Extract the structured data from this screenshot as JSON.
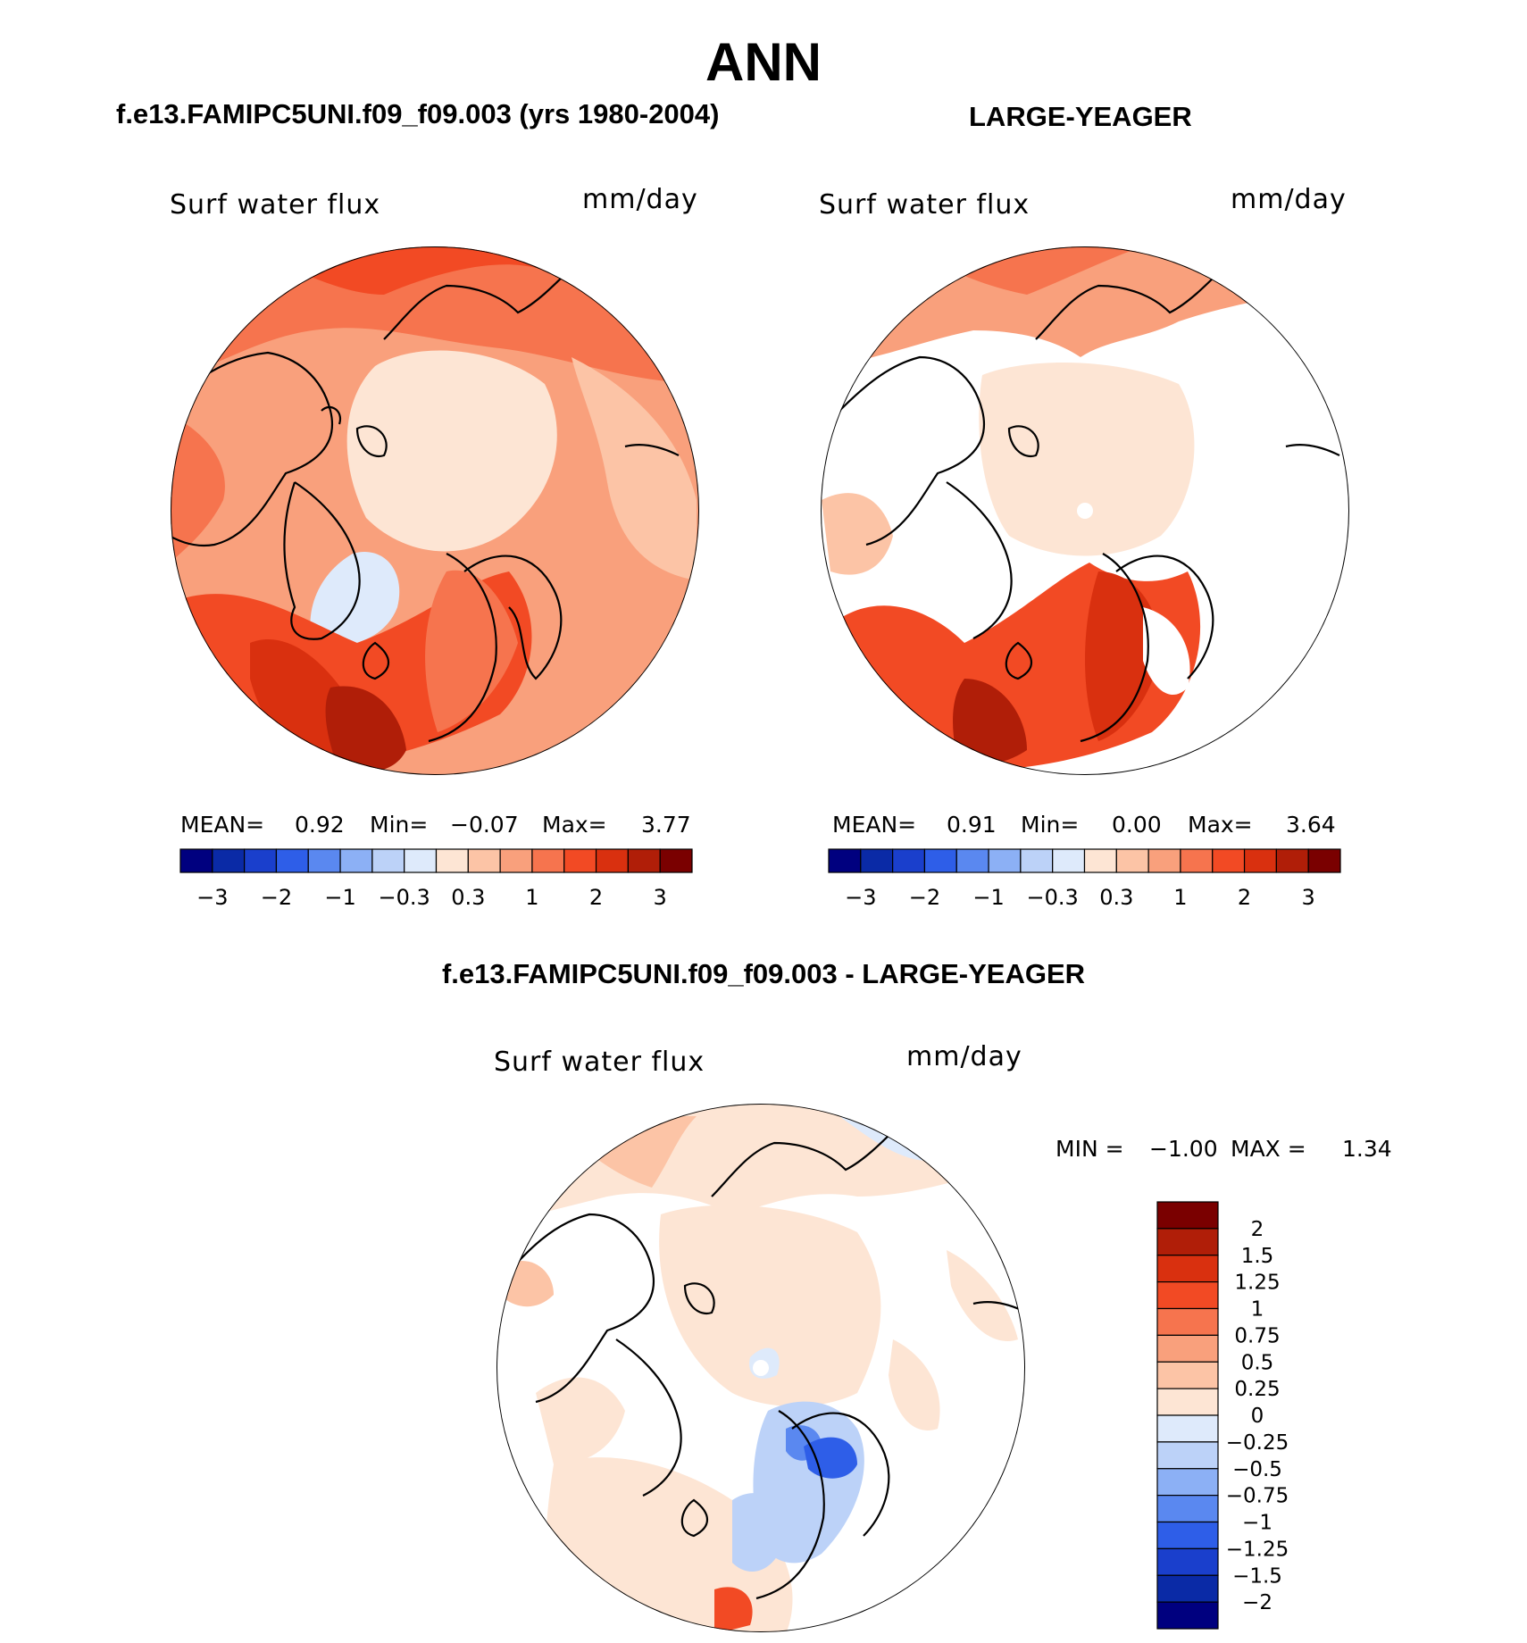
{
  "page": {
    "title": "ANN",
    "left_title": "f.e13.FAMIPC5UNI.f09_f09.003 (yrs 1980-2004)",
    "right_title": "LARGE-YEAGER",
    "diff_title": "f.e13.FAMIPC5UNI.f09_f09.003 - LARGE-YEAGER"
  },
  "panels": {
    "left": {
      "variable": "Surf water flux",
      "units": "mm/day",
      "mean_label": "MEAN=",
      "mean_value": "0.92",
      "min_label": "Min=",
      "min_value": "−0.07",
      "max_label": "Max=",
      "max_value": "3.77"
    },
    "right": {
      "variable": "Surf water flux",
      "units": "mm/day",
      "mean_label": "MEAN=",
      "mean_value": "0.91",
      "min_label": "Min=",
      "min_value": "0.00",
      "max_label": "Max=",
      "max_value": "3.64"
    },
    "diff": {
      "variable": "Surf water flux",
      "units": "mm/day",
      "min_label": "MIN =",
      "min_value": "−1.00",
      "max_label": "MAX =",
      "max_value": "1.34"
    }
  },
  "chart_data": [
    {
      "type": "heatmap",
      "projection": "north polar stereographic",
      "title": "f.e13.FAMIPC5UNI.f09_f09.003 (yrs 1980-2004)",
      "variable": "Surf water flux",
      "units": "mm/day",
      "mean": 0.92,
      "min": -0.07,
      "max": 3.77,
      "colorbar": {
        "orientation": "horizontal",
        "levels": [
          -3,
          -2.5,
          -2,
          -1.5,
          -1,
          -0.6,
          -0.3,
          0,
          0.3,
          0.6,
          1,
          1.5,
          2,
          2.5,
          3
        ],
        "tick_labels": [
          "−3",
          "−2",
          "−1",
          "−0.3",
          "0.3",
          "1",
          "2",
          "3"
        ],
        "colors": [
          "#00007f",
          "#0a2aa6",
          "#1a3fcc",
          "#2e5ee8",
          "#5a88f0",
          "#8cb0f5",
          "#bcd2f8",
          "#deeafb",
          "#fde5d4",
          "#fcc4a6",
          "#f9a07c",
          "#f6744e",
          "#f24a24",
          "#d9300f",
          "#b01e08",
          "#7a0000"
        ]
      }
    },
    {
      "type": "heatmap",
      "projection": "north polar stereographic",
      "title": "LARGE-YEAGER",
      "variable": "Surf water flux",
      "units": "mm/day",
      "mean": 0.91,
      "min": 0.0,
      "max": 3.64,
      "colorbar": {
        "orientation": "horizontal",
        "levels": [
          -3,
          -2.5,
          -2,
          -1.5,
          -1,
          -0.6,
          -0.3,
          0,
          0.3,
          0.6,
          1,
          1.5,
          2,
          2.5,
          3
        ],
        "tick_labels": [
          "−3",
          "−2",
          "−1",
          "−0.3",
          "0.3",
          "1",
          "2",
          "3"
        ],
        "colors": [
          "#00007f",
          "#0a2aa6",
          "#1a3fcc",
          "#2e5ee8",
          "#5a88f0",
          "#8cb0f5",
          "#bcd2f8",
          "#deeafb",
          "#fde5d4",
          "#fcc4a6",
          "#f9a07c",
          "#f6744e",
          "#f24a24",
          "#d9300f",
          "#b01e08",
          "#7a0000"
        ]
      }
    },
    {
      "type": "heatmap",
      "projection": "north polar stereographic",
      "title": "f.e13.FAMIPC5UNI.f09_f09.003 - LARGE-YEAGER",
      "variable": "Surf water flux",
      "units": "mm/day",
      "min": -1.0,
      "max": 1.34,
      "colorbar": {
        "orientation": "vertical",
        "tick_labels": [
          "2",
          "1.5",
          "1.25",
          "1",
          "0.75",
          "0.5",
          "0.25",
          "0",
          "−0.25",
          "−0.5",
          "−0.75",
          "−1",
          "−1.25",
          "−1.5",
          "−2"
        ],
        "colors": [
          "#7a0000",
          "#b01e08",
          "#d9300f",
          "#f24a24",
          "#f6744e",
          "#f9a07c",
          "#fcc4a6",
          "#fde5d4",
          "#deeafb",
          "#bcd2f8",
          "#8cb0f5",
          "#5a88f0",
          "#2e5ee8",
          "#1a3fcc",
          "#0a2aa6",
          "#00007f"
        ]
      }
    }
  ]
}
